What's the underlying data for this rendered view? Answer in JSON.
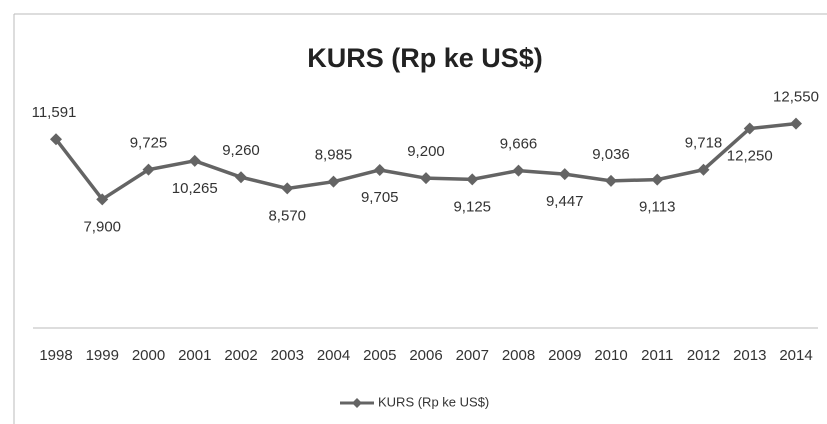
{
  "chart_data": {
    "type": "line",
    "title": "KURS (Rp ke US$)",
    "categories": [
      "1998",
      "1999",
      "2000",
      "2001",
      "2002",
      "2003",
      "2004",
      "2005",
      "2006",
      "2007",
      "2008",
      "2009",
      "2010",
      "2011",
      "2012",
      "2013",
      "2014"
    ],
    "series": [
      {
        "name": "KURS (Rp ke US$)",
        "color": "#646464",
        "values": [
          11591,
          7900,
          9725,
          10265,
          9260,
          8570,
          8985,
          9705,
          9200,
          9125,
          9666,
          9447,
          9036,
          9113,
          9718,
          12250,
          12550
        ],
        "value_labels": [
          "11,591",
          "7,900",
          "9,725",
          "10,265",
          "9,260",
          "8,570",
          "8,985",
          "9,705",
          "9,200",
          "9,125",
          "9,666",
          "9,447",
          "9,036",
          "9,113",
          "9,718",
          "12,250",
          "12,550"
        ]
      }
    ],
    "ylim": [
      0,
      14000
    ],
    "legend": "bottom"
  }
}
